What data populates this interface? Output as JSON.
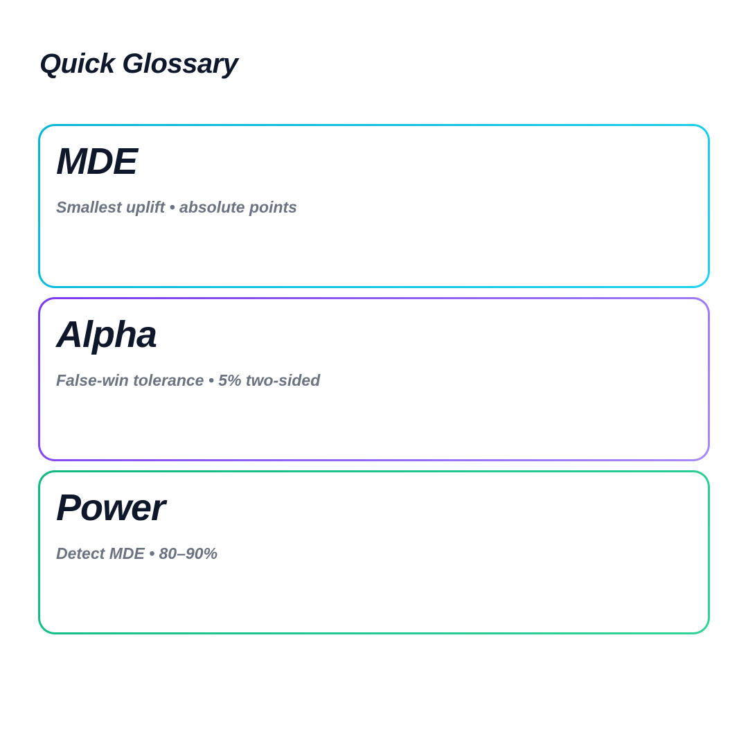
{
  "heading": "Quick Glossary",
  "cards": [
    {
      "title": "MDE",
      "description": "Smallest uplift • absolute points",
      "color_start": "#06b6d4",
      "color_end": "#22d3ee"
    },
    {
      "title": "Alpha",
      "description": "False-win tolerance • 5% two-sided",
      "color_start": "#7c3aed",
      "color_end": "#a78bfa"
    },
    {
      "title": "Power",
      "description": "Detect MDE • 80–90%",
      "color_start": "#10b981",
      "color_end": "#34d399"
    }
  ]
}
